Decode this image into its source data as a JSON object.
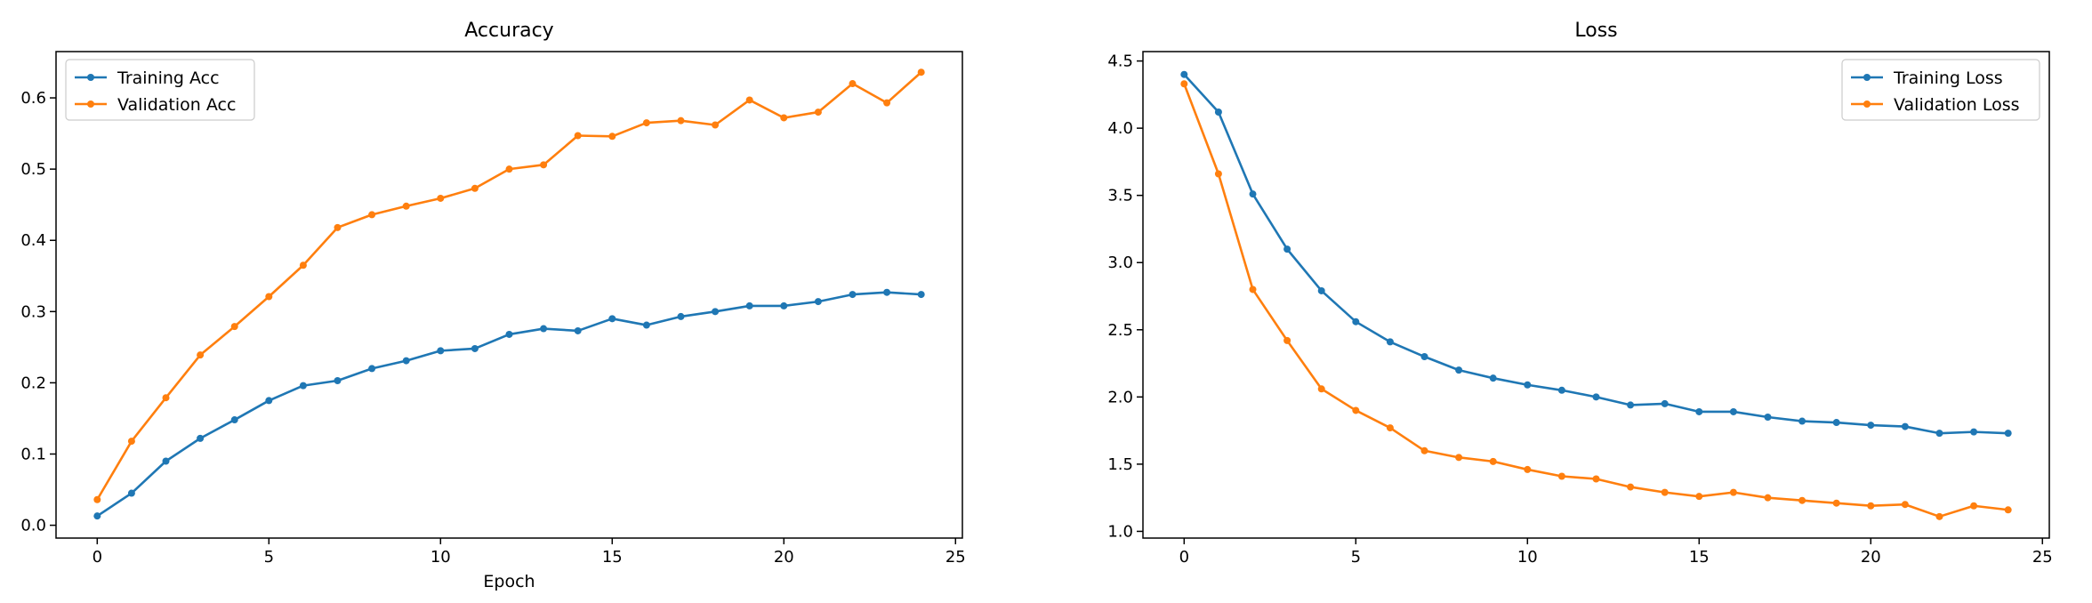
{
  "colors": {
    "series1": "#1f77b4",
    "series2": "#ff7f0e"
  },
  "chart_data": [
    {
      "type": "line",
      "title": "Accuracy",
      "xlabel": "Epoch",
      "ylabel": "",
      "xlim": [
        -1.2,
        25.2
      ],
      "ylim": [
        -0.018,
        0.665
      ],
      "xticks": [
        0,
        5,
        10,
        15,
        20,
        25
      ],
      "xtick_labels": [
        "0",
        "5",
        "10",
        "15",
        "20",
        "25"
      ],
      "yticks": [
        0.0,
        0.1,
        0.2,
        0.3,
        0.4,
        0.5,
        0.6
      ],
      "ytick_labels": [
        "0.0",
        "0.1",
        "0.2",
        "0.3",
        "0.4",
        "0.5",
        "0.6"
      ],
      "legend_position": "top-left",
      "grid": false,
      "x": [
        0,
        1,
        2,
        3,
        4,
        5,
        6,
        7,
        8,
        9,
        10,
        11,
        12,
        13,
        14,
        15,
        16,
        17,
        18,
        19,
        20,
        21,
        22,
        23,
        24
      ],
      "series": [
        {
          "name": "Training Acc",
          "color": "#1f77b4",
          "values": [
            0.013,
            0.045,
            0.09,
            0.122,
            0.148,
            0.175,
            0.196,
            0.203,
            0.22,
            0.231,
            0.245,
            0.248,
            0.268,
            0.276,
            0.273,
            0.29,
            0.281,
            0.293,
            0.3,
            0.308,
            0.308,
            0.314,
            0.324,
            0.327,
            0.324
          ]
        },
        {
          "name": "Validation Acc",
          "color": "#ff7f0e",
          "values": [
            0.036,
            0.118,
            0.179,
            0.239,
            0.279,
            0.321,
            0.365,
            0.418,
            0.436,
            0.448,
            0.459,
            0.473,
            0.5,
            0.506,
            0.547,
            0.546,
            0.565,
            0.568,
            0.562,
            0.597,
            0.572,
            0.58,
            0.62,
            0.593,
            0.636
          ]
        }
      ]
    },
    {
      "type": "line",
      "title": "Loss",
      "xlabel": "",
      "ylabel": "",
      "xlim": [
        -1.2,
        25.2
      ],
      "ylim": [
        0.95,
        4.57
      ],
      "xticks": [
        0,
        5,
        10,
        15,
        20,
        25
      ],
      "xtick_labels": [
        "0",
        "5",
        "10",
        "15",
        "20",
        "25"
      ],
      "yticks": [
        1.0,
        1.5,
        2.0,
        2.5,
        3.0,
        3.5,
        4.0,
        4.5
      ],
      "ytick_labels": [
        "1.0",
        "1.5",
        "2.0",
        "2.5",
        "3.0",
        "3.5",
        "4.0",
        "4.5"
      ],
      "legend_position": "top-right",
      "grid": false,
      "x": [
        0,
        1,
        2,
        3,
        4,
        5,
        6,
        7,
        8,
        9,
        10,
        11,
        12,
        13,
        14,
        15,
        16,
        17,
        18,
        19,
        20,
        21,
        22,
        23,
        24
      ],
      "series": [
        {
          "name": "Training Loss",
          "color": "#1f77b4",
          "values": [
            4.4,
            4.12,
            3.51,
            3.1,
            2.79,
            2.56,
            2.41,
            2.3,
            2.2,
            2.14,
            2.09,
            2.05,
            2.0,
            1.94,
            1.95,
            1.89,
            1.89,
            1.85,
            1.82,
            1.81,
            1.79,
            1.78,
            1.73,
            1.74,
            1.73
          ]
        },
        {
          "name": "Validation Loss",
          "color": "#ff7f0e",
          "values": [
            4.33,
            3.66,
            2.8,
            2.42,
            2.06,
            1.9,
            1.77,
            1.6,
            1.55,
            1.52,
            1.46,
            1.41,
            1.39,
            1.33,
            1.29,
            1.26,
            1.29,
            1.25,
            1.23,
            1.21,
            1.19,
            1.2,
            1.11,
            1.19,
            1.16
          ]
        }
      ]
    }
  ]
}
